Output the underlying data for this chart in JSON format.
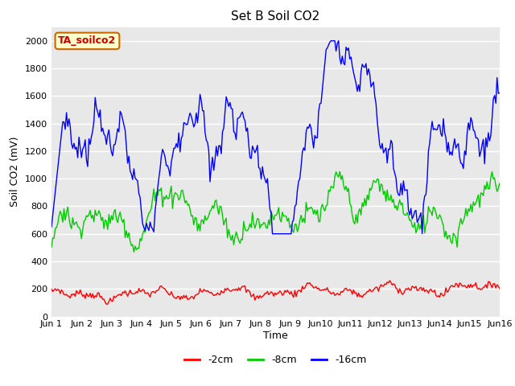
{
  "title": "Set B Soil CO2",
  "xlabel": "Time",
  "ylabel": "Soil CO2 (mV)",
  "ylim": [
    0,
    2100
  ],
  "yticks": [
    0,
    200,
    400,
    600,
    800,
    1000,
    1200,
    1400,
    1600,
    1800,
    2000
  ],
  "xtick_labels": [
    "Jun 1",
    "Jun 2",
    "Jun 3",
    "Jun 4",
    "Jun 5",
    "Jun 6",
    "Jun 7",
    "Jun 8",
    "Jun 9",
    "Jun 10",
    "Jun 11",
    "Jun 12",
    "Jun 13",
    "Jun 14",
    "Jun 15",
    "Jun 16"
  ],
  "annotation_text": "TA_soilco2",
  "annotation_facecolor": "#ffffcc",
  "annotation_edgecolor": "#cc6600",
  "annotation_textcolor": "#cc0000",
  "line_colors": [
    "#ff0000",
    "#00cc00",
    "#0000ff"
  ],
  "line_labels": [
    "-2cm",
    "-8cm",
    "-16cm"
  ],
  "background_color": "#e8e8e8",
  "fig_background": "#ffffff",
  "n_points": 360
}
